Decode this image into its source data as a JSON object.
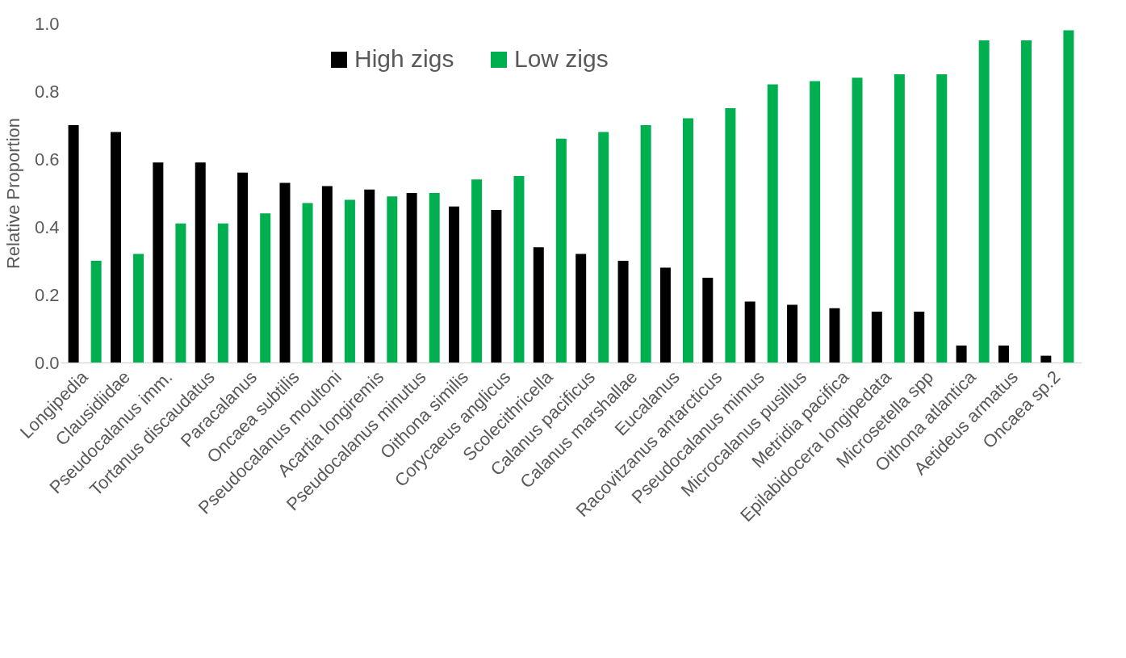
{
  "chart_data": {
    "type": "bar",
    "ylabel": "Relative Proportion",
    "categories": [
      "Longipedia",
      "Clausidiidae",
      "Pseudocalanus imm.",
      "Tortanus discaudatus",
      "Paracalanus",
      "Oncaea subtilis",
      "Pseudocalanus moultoni",
      "Acartia longiremis",
      "Pseudocalanus minutus",
      "Oithona similis",
      "Corycaeus anglicus",
      "Scolecithricella",
      "Calanus pacificus",
      "Calanus marshallae",
      "Eucalanus",
      "Racovitzanus antarcticus",
      "Pseudocalanus mimus",
      "Microcalanus pusillus",
      "Metridia pacifica",
      "Epilabidocera longipedata",
      "Microsetella spp",
      "Oithona atlantica",
      "Aetideus armatus",
      "Oncaea sp.2"
    ],
    "series": [
      {
        "name": "High zigs",
        "color": "#000000",
        "values": [
          0.7,
          0.68,
          0.59,
          0.59,
          0.56,
          0.53,
          0.52,
          0.51,
          0.5,
          0.46,
          0.45,
          0.34,
          0.32,
          0.3,
          0.28,
          0.25,
          0.18,
          0.17,
          0.16,
          0.15,
          0.15,
          0.05,
          0.05,
          0.02
        ]
      },
      {
        "name": "Low zigs",
        "color": "#00b050",
        "values": [
          0.3,
          0.32,
          0.41,
          0.41,
          0.44,
          0.47,
          0.48,
          0.49,
          0.5,
          0.54,
          0.55,
          0.66,
          0.68,
          0.7,
          0.72,
          0.75,
          0.82,
          0.83,
          0.84,
          0.85,
          0.85,
          0.95,
          0.95,
          0.98
        ]
      }
    ],
    "ylim": [
      0,
      1.0
    ],
    "yticks": [
      {
        "value": 0,
        "label": "0.0"
      },
      0.2,
      0.4,
      0.6,
      0.8,
      {
        "value": 1.0,
        "label": "1.0"
      }
    ],
    "grid": false,
    "legend": "top"
  }
}
